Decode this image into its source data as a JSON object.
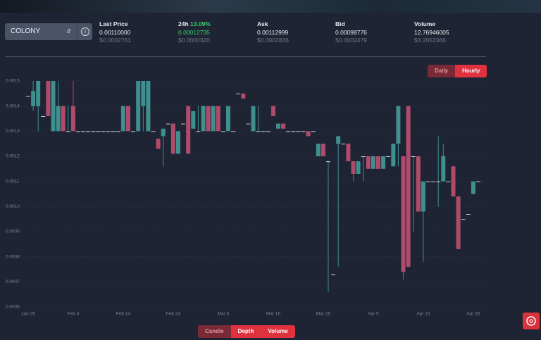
{
  "header": {
    "market": "COLONY",
    "stats": [
      {
        "label": "Last Price",
        "value": "0.00110000",
        "usd": "$0.0002761"
      },
      {
        "label": "24h",
        "change": "13.09%",
        "value": "0.00012735",
        "usd": "$0.0000320"
      },
      {
        "label": "Ask",
        "value": "0.00112999",
        "usd": "$0.0002836"
      },
      {
        "label": "Bid",
        "value": "0.00098776",
        "usd": "$0.0002479"
      },
      {
        "label": "Volume",
        "value": "12.76946005",
        "usd": "$3.2053366"
      }
    ]
  },
  "period_buttons": [
    "Daily",
    "Hourly"
  ],
  "view_buttons": [
    "Candle",
    "Depth",
    "Volume"
  ],
  "chart_data": {
    "type": "candlestick",
    "categories": [
      "Jan 26",
      null,
      null,
      null,
      null,
      null,
      null,
      null,
      null,
      "Feb 4",
      null,
      null,
      null,
      null,
      null,
      null,
      null,
      null,
      null,
      "Feb 14",
      null,
      null,
      null,
      null,
      null,
      null,
      null,
      null,
      null,
      "Feb 24",
      null,
      null,
      null,
      null,
      null,
      null,
      null,
      null,
      null,
      "Mar 6",
      null,
      null,
      null,
      null,
      null,
      null,
      null,
      null,
      null,
      "Mar 16",
      null,
      null,
      null,
      null,
      null,
      null,
      null,
      null,
      null,
      "Mar 26",
      null,
      null,
      null,
      null,
      null,
      null,
      null,
      null,
      null,
      "Apr 5",
      null,
      null,
      null,
      null,
      null,
      null,
      null,
      null,
      null,
      "Apr 15",
      null,
      null,
      null,
      null,
      null,
      null,
      null,
      null,
      null,
      "Apr 25",
      null
    ],
    "ohlc": [
      [
        0.00144,
        0.00144,
        0.00144,
        0.00144
      ],
      [
        0.0014,
        0.0015,
        0.00138,
        0.00146
      ],
      [
        0.0014,
        0.0015,
        0.0013,
        0.0015
      ],
      [
        0.00136,
        0.00136,
        0.00136,
        0.00136
      ],
      [
        0.0015,
        0.0015,
        0.00136,
        0.00136
      ],
      [
        0.0013,
        0.0015,
        0.0013,
        0.0015
      ],
      [
        0.0013,
        0.0015,
        0.0013,
        0.0014
      ],
      [
        0.0014,
        0.0014,
        0.0013,
        0.0013
      ],
      [
        0.0013,
        0.0014,
        0.0013,
        0.0013
      ],
      [
        0.0014,
        0.0015,
        0.0013,
        0.0013
      ],
      [
        0.0013,
        0.0013,
        0.0013,
        0.0013
      ],
      [
        0.0013,
        0.0013,
        0.0013,
        0.0013
      ],
      [
        0.0013,
        0.0013,
        0.0013,
        0.0013
      ],
      [
        0.0013,
        0.0013,
        0.0013,
        0.0013
      ],
      [
        0.0013,
        0.0013,
        0.0013,
        0.0013
      ],
      [
        0.0013,
        0.0013,
        0.0013,
        0.0013
      ],
      [
        0.0013,
        0.0013,
        0.0013,
        0.0013
      ],
      [
        0.0013,
        0.0013,
        0.0013,
        0.0013
      ],
      [
        0.0013,
        0.0013,
        0.0013,
        0.0013
      ],
      [
        0.0013,
        0.0014,
        0.0013,
        0.0014
      ],
      [
        0.0014,
        0.0014,
        0.0013,
        0.0013
      ],
      [
        0.0013,
        0.0013,
        0.0013,
        0.0013
      ],
      [
        0.0013,
        0.0015,
        0.0013,
        0.0015
      ],
      [
        0.0014,
        0.0015,
        0.0013,
        0.0015
      ],
      [
        0.0013,
        0.0015,
        0.0013,
        0.0015
      ],
      [
        0.0013,
        0.0013,
        0.0013,
        0.0013
      ],
      [
        0.00127,
        0.00127,
        0.00123,
        0.00123
      ],
      [
        0.00128,
        0.00131,
        0.00116,
        0.00131
      ],
      [
        0.00133,
        0.00133,
        0.00133,
        0.00133
      ],
      [
        0.00133,
        0.00133,
        0.00121,
        0.00121
      ],
      [
        0.00121,
        0.0013,
        0.00121,
        0.0013
      ],
      [
        0.00133,
        0.00133,
        0.00133,
        0.00133
      ],
      [
        0.0014,
        0.0014,
        0.00121,
        0.00121
      ],
      [
        0.00131,
        0.00138,
        0.00131,
        0.00138
      ],
      [
        0.0013,
        0.0014,
        0.0013,
        0.0013
      ],
      [
        0.0013,
        0.0014,
        0.0013,
        0.0014
      ],
      [
        0.0014,
        0.0014,
        0.0013,
        0.0013
      ],
      [
        0.0013,
        0.0014,
        0.0013,
        0.0014
      ],
      [
        0.0014,
        0.0014,
        0.0013,
        0.0013
      ],
      [
        0.0013,
        0.0013,
        0.0013,
        0.0013
      ],
      [
        0.0013,
        0.0014,
        0.0013,
        0.0014
      ],
      [
        0.0013,
        0.0013,
        0.0013,
        0.0013
      ],
      [
        0.00145,
        0.00145,
        0.00145,
        0.00145
      ],
      [
        0.00145,
        0.00145,
        0.00143,
        0.00143
      ],
      [
        0.00133,
        0.00133,
        0.00133,
        0.00133
      ],
      [
        0.0013,
        0.0014,
        0.0013,
        0.0014
      ],
      [
        0.0013,
        0.0014,
        0.0013,
        0.0013
      ],
      [
        0.0013,
        0.0013,
        0.0013,
        0.0013
      ],
      [
        0.0013,
        0.0013,
        0.0013,
        0.0013
      ],
      [
        0.0014,
        0.0014,
        0.00136,
        0.00136
      ],
      [
        0.00131,
        0.00133,
        0.00131,
        0.00133
      ],
      [
        0.00133,
        0.00133,
        0.00131,
        0.00131
      ],
      [
        0.0013,
        0.0013,
        0.0013,
        0.0013
      ],
      [
        0.0013,
        0.0013,
        0.0013,
        0.0013
      ],
      [
        0.0013,
        0.0013,
        0.0013,
        0.0013
      ],
      [
        0.0013,
        0.0013,
        0.0013,
        0.0013
      ],
      [
        0.0013,
        0.0013,
        0.00128,
        0.00128
      ],
      [
        0.0013,
        0.0013,
        0.0013,
        0.0013
      ],
      [
        0.0012,
        0.00125,
        0.0012,
        0.00125
      ],
      [
        0.00125,
        0.00125,
        0.0012,
        0.0012
      ],
      [
        0.00118,
        0.00118,
        0.00066,
        0.00118
      ],
      [
        0.00073,
        0.00073,
        0.00073,
        0.00073
      ],
      [
        0.00125,
        0.00128,
        0.00076,
        0.00128
      ],
      [
        0.00125,
        0.00125,
        0.00125,
        0.00125
      ],
      [
        0.00125,
        0.00125,
        0.00118,
        0.00118
      ],
      [
        0.00118,
        0.00118,
        0.0011,
        0.00113
      ],
      [
        0.00113,
        0.00118,
        0.00113,
        0.00118
      ],
      [
        0.0012,
        0.0012,
        0.0011,
        0.0012
      ],
      [
        0.0012,
        0.0012,
        0.00115,
        0.00115
      ],
      [
        0.00115,
        0.0012,
        0.00115,
        0.0012
      ],
      [
        0.0012,
        0.0012,
        0.00115,
        0.00115
      ],
      [
        0.00115,
        0.0012,
        0.00115,
        0.0012
      ],
      [
        0.0012,
        0.0012,
        0.0012,
        0.0012
      ],
      [
        0.00116,
        0.00125,
        0.00116,
        0.00125
      ],
      [
        0.00125,
        0.0014,
        0.00116,
        0.0014
      ],
      [
        0.0012,
        0.0012,
        0.00071,
        0.00074
      ],
      [
        0.0014,
        0.0014,
        0.00076,
        0.00076
      ],
      [
        0.0012,
        0.0012,
        0.0009,
        0.0012
      ],
      [
        0.0012,
        0.0012,
        0.00098,
        0.00098
      ],
      [
        0.00098,
        0.0011,
        0.00078,
        0.0011
      ],
      [
        0.0011,
        0.0011,
        0.0011,
        0.0011
      ],
      [
        0.0011,
        0.0011,
        0.0011,
        0.0011
      ],
      [
        0.0011,
        0.00128,
        0.001,
        0.0011
      ],
      [
        0.0011,
        0.00125,
        0.0011,
        0.0012
      ],
      [
        0.0011,
        0.0011,
        0.0011,
        0.0011
      ],
      [
        0.00116,
        0.00116,
        0.00104,
        0.00104
      ],
      [
        0.00104,
        0.00104,
        0.00083,
        0.00083
      ],
      [
        0.00095,
        0.00095,
        0.00095,
        0.00095
      ],
      [
        0.00097,
        0.00097,
        0.00097,
        0.00097
      ],
      [
        0.00105,
        0.0011,
        0.00105,
        0.0011
      ],
      [
        0.0011,
        0.0011,
        0.0011,
        0.0011
      ]
    ],
    "up_color": "#3f8f8f",
    "down_color": "#b04b6b",
    "ylim": [
      0.0006,
      0.00153
    ],
    "yticks": [
      0.0015,
      0.0014,
      0.0013,
      0.0012,
      0.0011,
      {
        "value": 0.001,
        "label": "0.0010"
      },
      0.0009,
      0.0008,
      0.0007,
      0.0006
    ],
    "grid": true
  }
}
